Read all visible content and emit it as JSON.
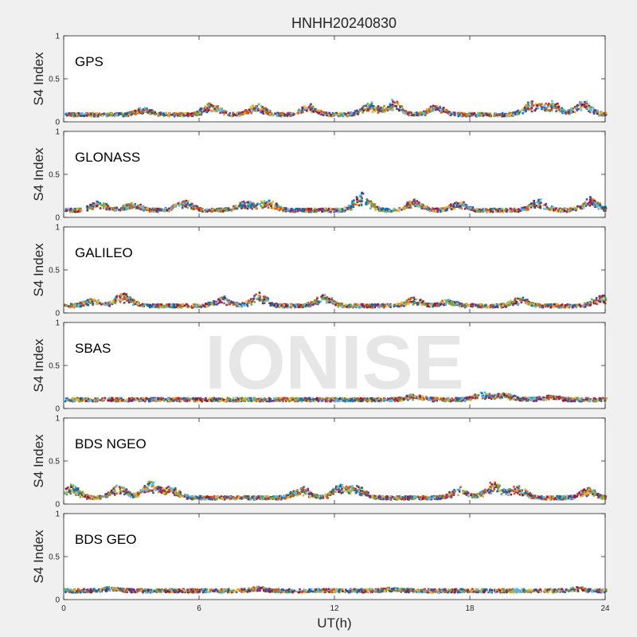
{
  "chart_data": {
    "type": "scatter",
    "title": "HNHH20240830",
    "xlabel": "UT(h)",
    "ylabel": "S4 Index",
    "xlim": [
      0,
      24
    ],
    "ylim": [
      0,
      1
    ],
    "x_ticks": [
      "0",
      "6",
      "12",
      "18",
      "24"
    ],
    "y_ticks": [
      "0",
      "0.5",
      "1"
    ],
    "grid": false,
    "watermark": "IONISE",
    "series_colors": [
      "#0072BD",
      "#D95319",
      "#EDB120",
      "#7E2F8E",
      "#77AC30",
      "#4DBEEE",
      "#A2142F"
    ],
    "panels": [
      {
        "name": "GPS",
        "baseline": 0.08,
        "peaks": [
          [
            3.5,
            0.15
          ],
          [
            6.5,
            0.22
          ],
          [
            8.5,
            0.2
          ],
          [
            10.8,
            0.2
          ],
          [
            13.5,
            0.22
          ],
          [
            14.6,
            0.24
          ],
          [
            16.5,
            0.2
          ],
          [
            20.7,
            0.23
          ],
          [
            21.6,
            0.22
          ],
          [
            23.0,
            0.25
          ]
        ]
      },
      {
        "name": "GLONASS",
        "baseline": 0.08,
        "peaks": [
          [
            1.5,
            0.18
          ],
          [
            3.0,
            0.16
          ],
          [
            5.3,
            0.2
          ],
          [
            8.0,
            0.18
          ],
          [
            9.0,
            0.2
          ],
          [
            13.2,
            0.28
          ],
          [
            15.5,
            0.2
          ],
          [
            17.5,
            0.17
          ],
          [
            21.0,
            0.2
          ],
          [
            23.3,
            0.22
          ]
        ]
      },
      {
        "name": "GALILEO",
        "baseline": 0.08,
        "peaks": [
          [
            1.2,
            0.15
          ],
          [
            2.6,
            0.22
          ],
          [
            7.0,
            0.18
          ],
          [
            8.6,
            0.22
          ],
          [
            11.5,
            0.21
          ],
          [
            15.5,
            0.17
          ],
          [
            17.0,
            0.15
          ],
          [
            20.2,
            0.17
          ],
          [
            23.8,
            0.2
          ]
        ]
      },
      {
        "name": "SBAS",
        "baseline": 0.1,
        "peaks": [
          [
            15.5,
            0.15
          ],
          [
            18.5,
            0.18
          ],
          [
            19.5,
            0.17
          ],
          [
            21.5,
            0.15
          ]
        ]
      },
      {
        "name": "BDS NGEO",
        "baseline": 0.07,
        "peaks": [
          [
            0.3,
            0.22
          ],
          [
            2.4,
            0.21
          ],
          [
            3.8,
            0.25
          ],
          [
            4.7,
            0.2
          ],
          [
            10.5,
            0.2
          ],
          [
            12.2,
            0.22
          ],
          [
            13.0,
            0.19
          ],
          [
            17.5,
            0.18
          ],
          [
            19.0,
            0.25
          ],
          [
            20.1,
            0.2
          ],
          [
            23.2,
            0.18
          ]
        ]
      },
      {
        "name": "BDS GEO",
        "baseline": 0.1,
        "peaks": [
          [
            2.0,
            0.13
          ],
          [
            8.5,
            0.13
          ],
          [
            14.5,
            0.12
          ],
          [
            22.8,
            0.13
          ]
        ]
      }
    ]
  }
}
